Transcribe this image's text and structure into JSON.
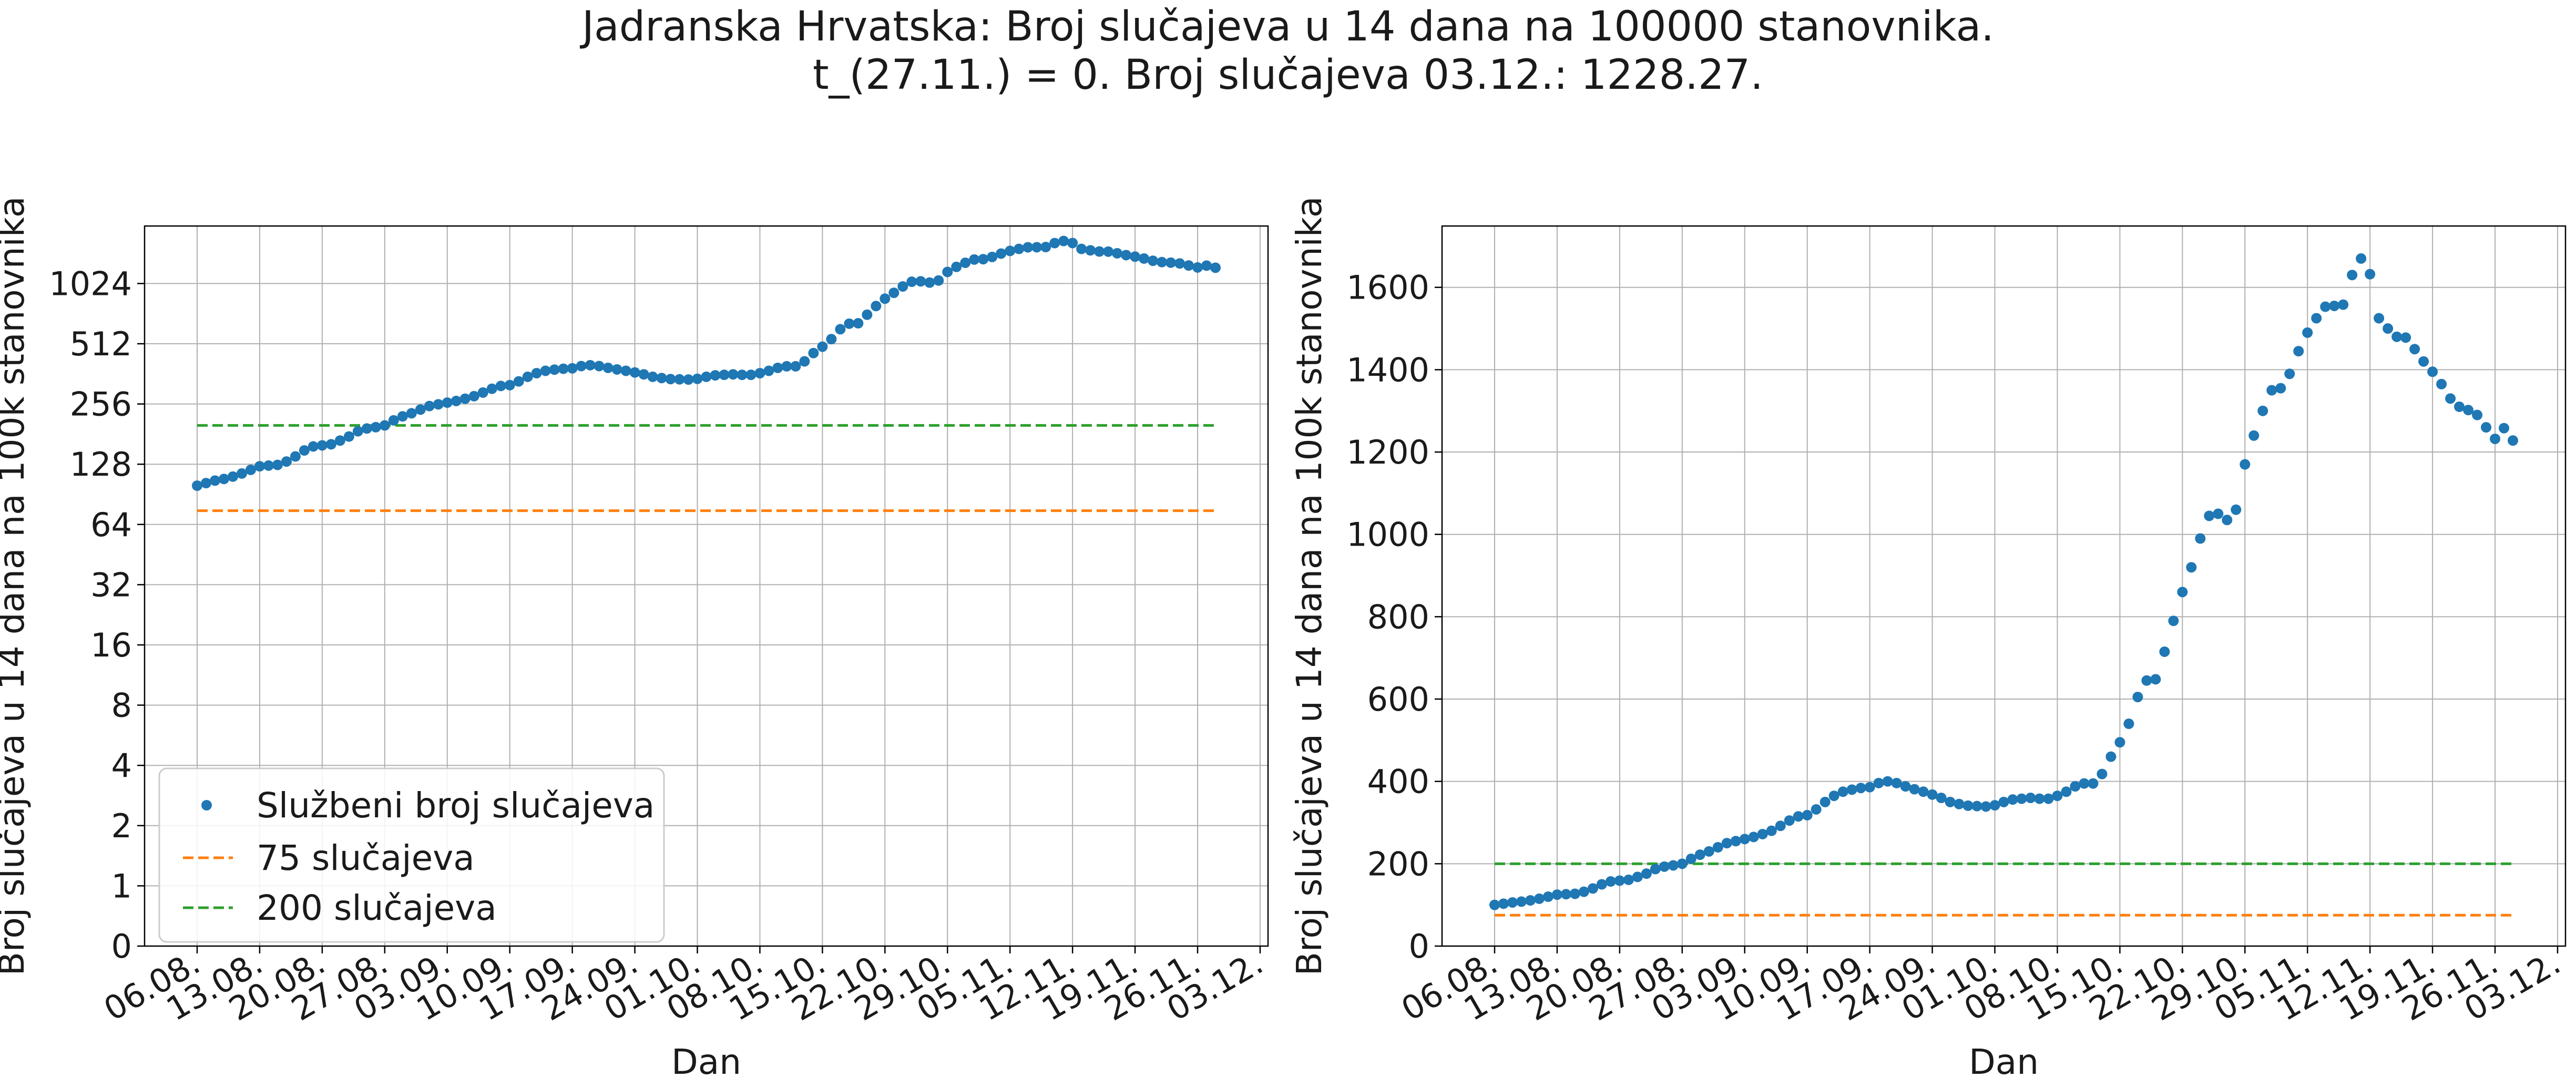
{
  "figure": {
    "title_line1": "Jadranska Hrvatska: Broj slučajeva u 14 dana na 100000 stanovnika.",
    "title_line2": "t_(27.11.) = 0. Broj slučajeva 03.12.: 1228.27."
  },
  "colors": {
    "points": "#1f77b4",
    "line75": "#ff7f0e",
    "line200": "#2ca02c",
    "grid": "#b0b0b0"
  },
  "chart_data": [
    {
      "type": "scatter",
      "yscale": "log2",
      "xlabel": "Dan",
      "ylabel": "Broj slučajeva u 14 dana na 100k stanovnika",
      "x_ticks": [
        "06.08.",
        "13.08.",
        "20.08.",
        "27.08.",
        "03.09.",
        "10.09.",
        "17.09.",
        "24.09.",
        "01.10.",
        "08.10.",
        "15.10.",
        "22.10.",
        "29.10.",
        "05.11.",
        "12.11.",
        "19.11.",
        "26.11.",
        "03.12."
      ],
      "y_ticks": [
        0,
        1,
        2,
        4,
        8,
        16,
        32,
        64,
        128,
        256,
        512,
        1024
      ],
      "grid": true,
      "legend_position": "lower-left",
      "legend": [
        "Službeni broj slučajeva",
        "75 slučajeva",
        "200 slučajeva"
      ],
      "x_range": [
        "06.08.",
        "03.12."
      ],
      "reference_lines": [
        {
          "label": "75 slučajeva",
          "value": 75
        },
        {
          "label": "200 slučajeva",
          "value": 200
        }
      ]
    },
    {
      "type": "scatter",
      "yscale": "linear",
      "xlabel": "Dan",
      "ylabel": "Broj slučajeva u 14 dana na 100k stanovnika",
      "x_ticks": [
        "06.08.",
        "13.08.",
        "20.08.",
        "27.08.",
        "03.09.",
        "10.09.",
        "17.09.",
        "24.09.",
        "01.10.",
        "08.10.",
        "15.10.",
        "22.10.",
        "29.10.",
        "05.11.",
        "12.11.",
        "19.11.",
        "26.11.",
        "03.12."
      ],
      "y_ticks": [
        0,
        200,
        400,
        600,
        800,
        1000,
        1200,
        1400,
        1600
      ],
      "ylim": [
        0,
        1750
      ],
      "grid": true,
      "x_range": [
        "06.08.",
        "03.12."
      ],
      "reference_lines": [
        {
          "label": "75 slučajeva",
          "value": 75
        },
        {
          "label": "200 slučajeva",
          "value": 200
        }
      ]
    }
  ],
  "series": {
    "name": "Službeni broj slučajeva",
    "x_start": "06.08.",
    "x_end": "03.12.",
    "values": [
      100,
      103,
      106,
      108,
      111,
      115,
      120,
      125,
      126,
      127,
      132,
      140,
      150,
      157,
      159,
      161,
      168,
      176,
      187,
      193,
      196,
      200,
      212,
      222,
      230,
      240,
      250,
      255,
      260,
      265,
      272,
      280,
      292,
      305,
      315,
      318,
      332,
      350,
      365,
      375,
      380,
      384,
      386,
      396,
      400,
      396,
      388,
      381,
      375,
      368,
      360,
      350,
      345,
      341,
      340,
      339,
      342,
      350,
      356,
      358,
      360,
      358,
      358,
      365,
      375,
      388,
      395,
      395,
      418,
      460,
      495,
      540,
      605,
      645,
      648,
      715,
      790,
      860,
      920,
      990,
      1045,
      1050,
      1035,
      1060,
      1170,
      1240,
      1300,
      1350,
      1355,
      1390,
      1445,
      1490,
      1525,
      1553,
      1555,
      1558,
      1630,
      1670,
      1632,
      1525,
      1500,
      1480,
      1478,
      1450,
      1420,
      1395,
      1365,
      1330,
      1310,
      1302,
      1290,
      1260,
      1232,
      1258,
      1228
    ]
  }
}
